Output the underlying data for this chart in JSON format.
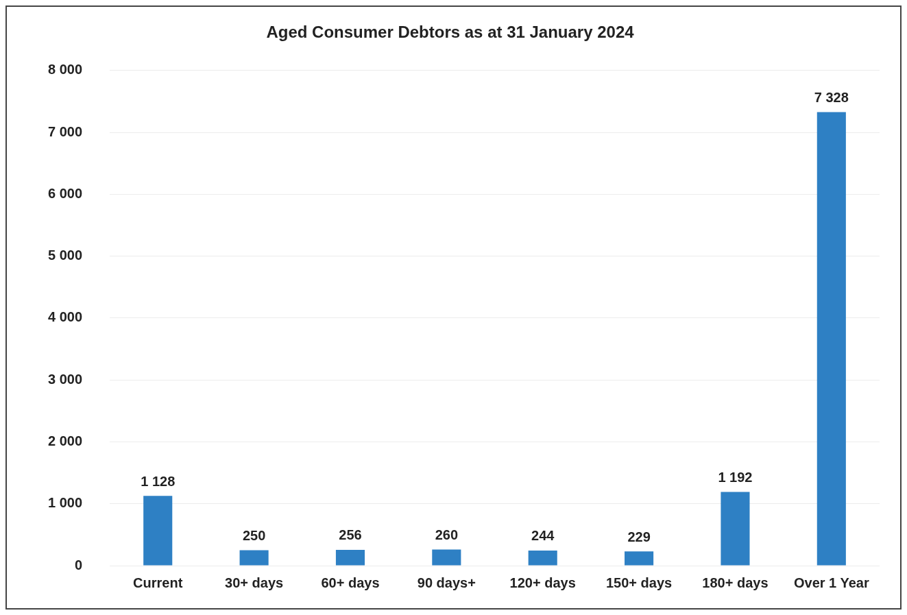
{
  "chart_data": {
    "type": "bar",
    "title": "Aged Consumer Debtors as at 31 January 2024",
    "categories": [
      "Current",
      "30+ days",
      "60+ days",
      "90 days+",
      "120+ days",
      "150+ days",
      "180+ days",
      "Over 1 Year"
    ],
    "values": [
      1128,
      250,
      256,
      260,
      244,
      229,
      1192,
      7328
    ],
    "value_labels": [
      "1 128",
      "250",
      "256",
      "260",
      "244",
      "229",
      "1 192",
      "7 328"
    ],
    "color": "#2e80c4",
    "ylim": [
      0,
      8000
    ],
    "yticks": [
      {
        "value": 0,
        "label": "0"
      },
      {
        "value": 1000,
        "label": "1 000"
      },
      {
        "value": 2000,
        "label": "2 000"
      },
      {
        "value": 3000,
        "label": "3 000"
      },
      {
        "value": 4000,
        "label": "4 000"
      },
      {
        "value": 5000,
        "label": "5 000"
      },
      {
        "value": 6000,
        "label": "6 000"
      },
      {
        "value": 7000,
        "label": "7 000"
      },
      {
        "value": 8000,
        "label": "8 000"
      }
    ],
    "grid": "y",
    "legend": false
  }
}
